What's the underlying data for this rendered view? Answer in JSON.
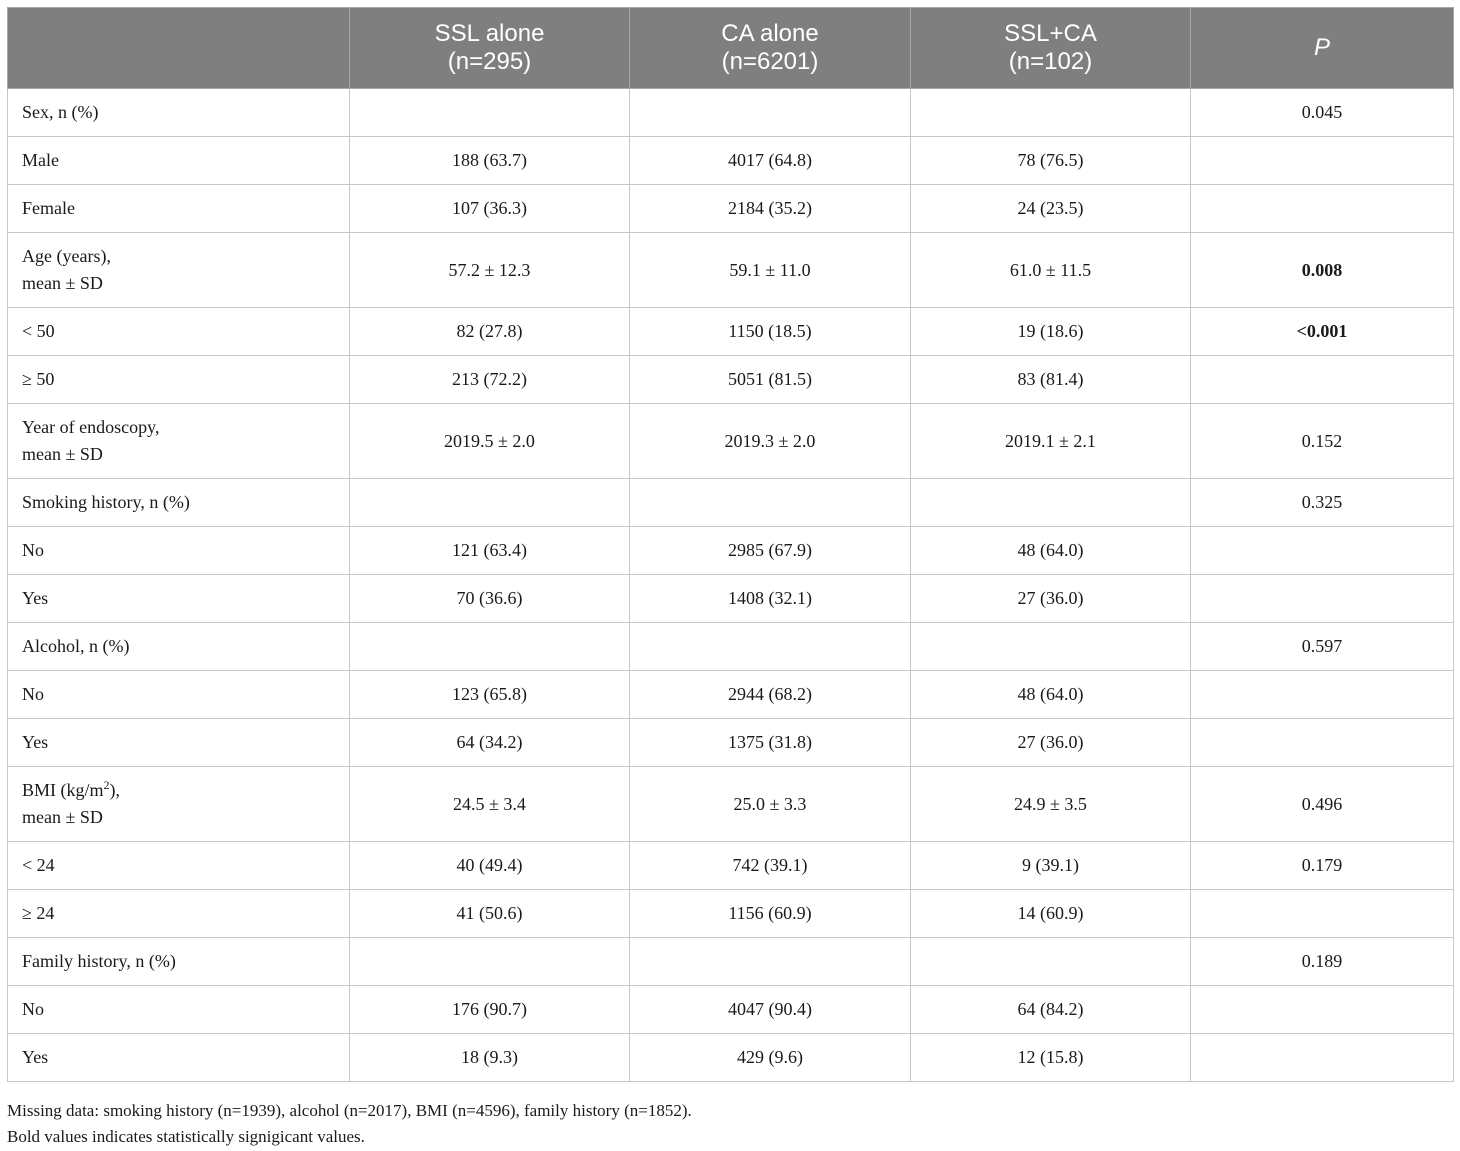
{
  "header": {
    "col0": "",
    "col1": {
      "line1": "SSL alone",
      "line2": "(n=295)"
    },
    "col2": {
      "line1": "CA alone",
      "line2": "(n=6201)"
    },
    "col3": {
      "line1": "SSL+CA",
      "line2": "(n=102)"
    },
    "col4": "P"
  },
  "rows": {
    "sex": {
      "label": "Sex, n (%)",
      "c1": "",
      "c2": "",
      "c3": "",
      "p": "0.045"
    },
    "male": {
      "label": "Male",
      "c1": "188 (63.7)",
      "c2": "4017 (64.8)",
      "c3": "78 (76.5)",
      "p": ""
    },
    "female": {
      "label": "Female",
      "c1": "107 (36.3)",
      "c2": "2184 (35.2)",
      "c3": "24 (23.5)",
      "p": ""
    },
    "age": {
      "label1": "Age (years),",
      "label2": "mean ± SD",
      "c1": "57.2 ± 12.3",
      "c2": "59.1 ± 11.0",
      "c3": "61.0 ± 11.5",
      "p": "0.008"
    },
    "age_lt50": {
      "label": "< 50",
      "c1": "82 (27.8)",
      "c2": "1150 (18.5)",
      "c3": "19 (18.6)",
      "p": "<0.001"
    },
    "age_ge50": {
      "label": "≥ 50",
      "c1": "213 (72.2)",
      "c2": "5051 (81.5)",
      "c3": "83 (81.4)",
      "p": ""
    },
    "year": {
      "label1": "Year of endoscopy,",
      "label2": "mean ± SD",
      "c1": "2019.5 ± 2.0",
      "c2": "2019.3 ± 2.0",
      "c3": "2019.1 ± 2.1",
      "p": "0.152"
    },
    "smoking": {
      "label": "Smoking history, n (%)",
      "c1": "",
      "c2": "",
      "c3": "",
      "p": "0.325"
    },
    "smoke_no": {
      "label": "No",
      "c1": "121 (63.4)",
      "c2": "2985 (67.9)",
      "c3": "48 (64.0)",
      "p": ""
    },
    "smoke_yes": {
      "label": "Yes",
      "c1": "70 (36.6)",
      "c2": "1408 (32.1)",
      "c3": "27 (36.0)",
      "p": ""
    },
    "alcohol": {
      "label": "Alcohol, n (%)",
      "c1": "",
      "c2": "",
      "c3": "",
      "p": "0.597"
    },
    "alc_no": {
      "label": "No",
      "c1": "123 (65.8)",
      "c2": "2944 (68.2)",
      "c3": "48 (64.0)",
      "p": ""
    },
    "alc_yes": {
      "label": "Yes",
      "c1": "64 (34.2)",
      "c2": "1375 (31.8)",
      "c3": "27 (36.0)",
      "p": ""
    },
    "bmi": {
      "label1a": "BMI (kg/m",
      "label1sup": "2",
      "label1b": "),",
      "label2": "mean ± SD",
      "c1": "24.5 ± 3.4",
      "c2": "25.0 ± 3.3",
      "c3": "24.9 ± 3.5",
      "p": "0.496"
    },
    "bmi_lt24": {
      "label": "< 24",
      "c1": "40 (49.4)",
      "c2": "742 (39.1)",
      "c3": "9 (39.1)",
      "p": "0.179"
    },
    "bmi_ge24": {
      "label": "≥ 24",
      "c1": "41 (50.6)",
      "c2": "1156 (60.9)",
      "c3": "14 (60.9)",
      "p": ""
    },
    "family": {
      "label": "Family history, n (%)",
      "c1": "",
      "c2": "",
      "c3": "",
      "p": "0.189"
    },
    "fam_no": {
      "label": "No",
      "c1": "176 (90.7)",
      "c2": "4047 (90.4)",
      "c3": "64 (84.2)",
      "p": ""
    },
    "fam_yes": {
      "label": "Yes",
      "c1": "18 (9.3)",
      "c2": "429 (9.6)",
      "c3": "12 (15.8)",
      "p": ""
    }
  },
  "notes": {
    "missing": "Missing data: smoking history (n=1939), alcohol (n=2017), BMI (n=4596), family history (n=1852).",
    "bold": "Bold values indicates statistically signigicant values."
  },
  "colors": {
    "header_bg": "#7f7f7f",
    "header_text": "#ffffff",
    "grid": "#c6c6c6"
  }
}
